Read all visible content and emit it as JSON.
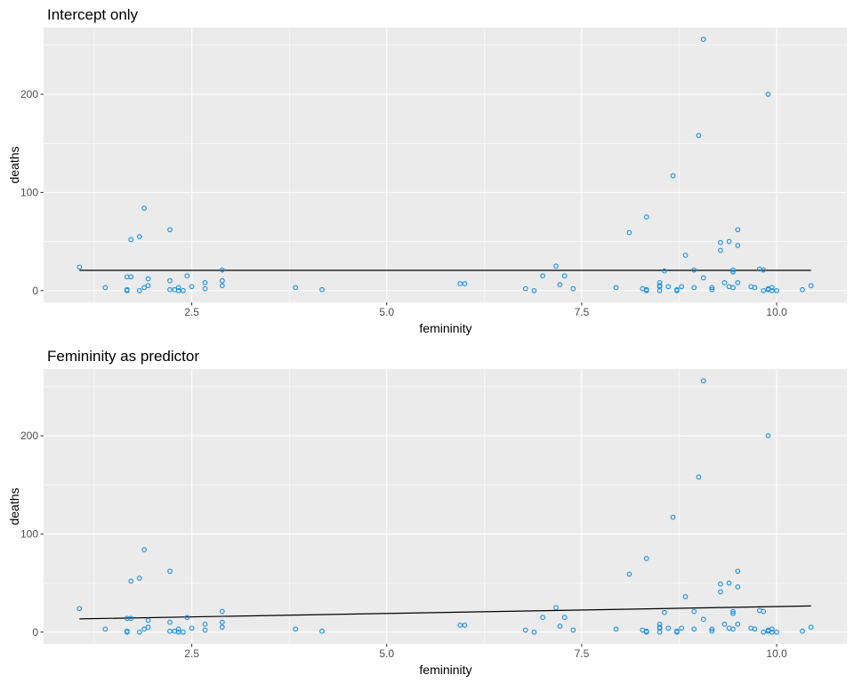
{
  "chart_data": [
    {
      "type": "scatter",
      "title": "Intercept only",
      "xlabel": "femininity",
      "ylabel": "deaths",
      "xlim": [
        0.6,
        10.9
      ],
      "ylim": [
        -12,
        268
      ],
      "x_ticks": [
        2.5,
        5.0,
        7.5,
        10.0
      ],
      "x_tick_labels": [
        "2.5",
        "5.0",
        "7.5",
        "10.0"
      ],
      "y_ticks": [
        0,
        100,
        200
      ],
      "y_tick_labels": [
        "0",
        "100",
        "200"
      ],
      "grid": true,
      "point_color": "#1a8fe3",
      "line_color": "#000000",
      "fit": {
        "type": "intercept",
        "intercept": 20.65,
        "x_range": [
          1.06,
          10.44
        ]
      },
      "points": [
        [
          1.06,
          24
        ],
        [
          1.39,
          3
        ],
        [
          1.67,
          14
        ],
        [
          1.72,
          14
        ],
        [
          1.67,
          0
        ],
        [
          1.67,
          1
        ],
        [
          1.72,
          52
        ],
        [
          1.83,
          55
        ],
        [
          1.83,
          0
        ],
        [
          1.89,
          84
        ],
        [
          1.89,
          3
        ],
        [
          1.94,
          5
        ],
        [
          1.94,
          12
        ],
        [
          2.22,
          62
        ],
        [
          2.22,
          10
        ],
        [
          2.22,
          1
        ],
        [
          2.28,
          1
        ],
        [
          2.33,
          3
        ],
        [
          2.33,
          0
        ],
        [
          2.39,
          0
        ],
        [
          2.44,
          15
        ],
        [
          2.5,
          4
        ],
        [
          2.67,
          8
        ],
        [
          2.67,
          2
        ],
        [
          2.89,
          21
        ],
        [
          2.89,
          10
        ],
        [
          2.89,
          5
        ],
        [
          3.83,
          3
        ],
        [
          4.17,
          1
        ],
        [
          5.94,
          7
        ],
        [
          6.0,
          7
        ],
        [
          6.78,
          2
        ],
        [
          6.89,
          0
        ],
        [
          7.0,
          15
        ],
        [
          7.17,
          25
        ],
        [
          7.22,
          6
        ],
        [
          7.28,
          15
        ],
        [
          7.39,
          2
        ],
        [
          7.94,
          3
        ],
        [
          8.11,
          59
        ],
        [
          8.28,
          2
        ],
        [
          8.33,
          75
        ],
        [
          8.33,
          0
        ],
        [
          8.33,
          1
        ],
        [
          8.5,
          8
        ],
        [
          8.5,
          0
        ],
        [
          8.5,
          4
        ],
        [
          8.5,
          5
        ],
        [
          8.56,
          20
        ],
        [
          8.61,
          4
        ],
        [
          8.67,
          117
        ],
        [
          8.72,
          1
        ],
        [
          8.72,
          0
        ],
        [
          8.78,
          4
        ],
        [
          8.83,
          36
        ],
        [
          8.94,
          21
        ],
        [
          8.94,
          3
        ],
        [
          9.0,
          158
        ],
        [
          9.06,
          256
        ],
        [
          9.06,
          13
        ],
        [
          9.17,
          1
        ],
        [
          9.17,
          3
        ],
        [
          9.28,
          41
        ],
        [
          9.28,
          49
        ],
        [
          9.33,
          8
        ],
        [
          9.39,
          50
        ],
        [
          9.39,
          4
        ],
        [
          9.44,
          21
        ],
        [
          9.44,
          19
        ],
        [
          9.44,
          3
        ],
        [
          9.5,
          46
        ],
        [
          9.5,
          62
        ],
        [
          9.5,
          8
        ],
        [
          9.67,
          4
        ],
        [
          9.72,
          3
        ],
        [
          9.78,
          22
        ],
        [
          9.83,
          21
        ],
        [
          9.83,
          0
        ],
        [
          9.89,
          1
        ],
        [
          9.89,
          200
        ],
        [
          9.89,
          2
        ],
        [
          9.94,
          0
        ],
        [
          9.94,
          3
        ],
        [
          10.0,
          0
        ],
        [
          10.33,
          1
        ],
        [
          10.44,
          5
        ]
      ]
    },
    {
      "type": "scatter",
      "title": "Femininity as predictor",
      "xlabel": "femininity",
      "ylabel": "deaths",
      "xlim": [
        0.6,
        10.9
      ],
      "ylim": [
        -12,
        268
      ],
      "x_ticks": [
        2.5,
        5.0,
        7.5,
        10.0
      ],
      "x_tick_labels": [
        "2.5",
        "5.0",
        "7.5",
        "10.0"
      ],
      "y_ticks": [
        0,
        100,
        200
      ],
      "y_tick_labels": [
        "0",
        "100",
        "200"
      ],
      "grid": true,
      "point_color": "#1a8fe3",
      "line_color": "#000000",
      "fit": {
        "type": "linear",
        "intercept": 12.0,
        "slope": 1.4,
        "x_range": [
          1.06,
          10.44
        ]
      },
      "points": [
        [
          1.06,
          24
        ],
        [
          1.39,
          3
        ],
        [
          1.67,
          14
        ],
        [
          1.72,
          14
        ],
        [
          1.67,
          0
        ],
        [
          1.67,
          1
        ],
        [
          1.72,
          52
        ],
        [
          1.83,
          55
        ],
        [
          1.83,
          0
        ],
        [
          1.89,
          84
        ],
        [
          1.89,
          3
        ],
        [
          1.94,
          5
        ],
        [
          1.94,
          12
        ],
        [
          2.22,
          62
        ],
        [
          2.22,
          10
        ],
        [
          2.22,
          1
        ],
        [
          2.28,
          1
        ],
        [
          2.33,
          3
        ],
        [
          2.33,
          0
        ],
        [
          2.39,
          0
        ],
        [
          2.44,
          15
        ],
        [
          2.5,
          4
        ],
        [
          2.67,
          8
        ],
        [
          2.67,
          2
        ],
        [
          2.89,
          21
        ],
        [
          2.89,
          10
        ],
        [
          2.89,
          5
        ],
        [
          3.83,
          3
        ],
        [
          4.17,
          1
        ],
        [
          5.94,
          7
        ],
        [
          6.0,
          7
        ],
        [
          6.78,
          2
        ],
        [
          6.89,
          0
        ],
        [
          7.0,
          15
        ],
        [
          7.17,
          25
        ],
        [
          7.22,
          6
        ],
        [
          7.28,
          15
        ],
        [
          7.39,
          2
        ],
        [
          7.94,
          3
        ],
        [
          8.11,
          59
        ],
        [
          8.28,
          2
        ],
        [
          8.33,
          75
        ],
        [
          8.33,
          0
        ],
        [
          8.33,
          1
        ],
        [
          8.5,
          8
        ],
        [
          8.5,
          0
        ],
        [
          8.5,
          4
        ],
        [
          8.5,
          5
        ],
        [
          8.56,
          20
        ],
        [
          8.61,
          4
        ],
        [
          8.67,
          117
        ],
        [
          8.72,
          1
        ],
        [
          8.72,
          0
        ],
        [
          8.78,
          4
        ],
        [
          8.83,
          36
        ],
        [
          8.94,
          21
        ],
        [
          8.94,
          3
        ],
        [
          9.0,
          158
        ],
        [
          9.06,
          256
        ],
        [
          9.06,
          13
        ],
        [
          9.17,
          1
        ],
        [
          9.17,
          3
        ],
        [
          9.28,
          41
        ],
        [
          9.28,
          49
        ],
        [
          9.33,
          8
        ],
        [
          9.39,
          50
        ],
        [
          9.39,
          4
        ],
        [
          9.44,
          21
        ],
        [
          9.44,
          19
        ],
        [
          9.44,
          3
        ],
        [
          9.5,
          46
        ],
        [
          9.5,
          62
        ],
        [
          9.5,
          8
        ],
        [
          9.67,
          4
        ],
        [
          9.72,
          3
        ],
        [
          9.78,
          22
        ],
        [
          9.83,
          21
        ],
        [
          9.83,
          0
        ],
        [
          9.89,
          1
        ],
        [
          9.89,
          200
        ],
        [
          9.89,
          2
        ],
        [
          9.94,
          0
        ],
        [
          9.94,
          3
        ],
        [
          10.0,
          0
        ],
        [
          10.33,
          1
        ],
        [
          10.44,
          5
        ]
      ]
    }
  ]
}
